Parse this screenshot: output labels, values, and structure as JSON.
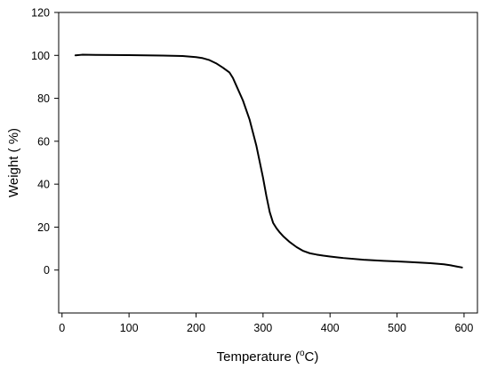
{
  "chart_data": {
    "type": "line",
    "title": "",
    "xlabel": "Temperature (°C)",
    "xlabel_parts": {
      "before": "Temperature (",
      "sup": "o",
      "after": "C)"
    },
    "ylabel": "Weight ( %)",
    "xlim": [
      -5,
      620
    ],
    "ylim": [
      -20,
      120
    ],
    "xticks": [
      0,
      100,
      200,
      300,
      400,
      500,
      600
    ],
    "yticks": [
      0,
      20,
      40,
      60,
      80,
      100,
      120
    ],
    "grid": false,
    "line_color": "#000000",
    "series": [
      {
        "x": [
          20,
          30,
          50,
          100,
          150,
          180,
          200,
          210,
          220,
          230,
          240,
          250,
          255,
          260,
          270,
          280,
          290,
          300,
          305,
          310,
          315,
          320,
          325,
          330,
          340,
          350,
          360,
          370,
          380,
          390,
          400,
          420,
          450,
          480,
          500,
          520,
          550,
          570,
          580,
          590,
          597
        ],
        "y": [
          100,
          100.3,
          100.2,
          100.1,
          99.9,
          99.7,
          99.2,
          98.7,
          97.8,
          96.3,
          94.3,
          92.0,
          89.5,
          86.0,
          79.0,
          70.0,
          58.0,
          43.0,
          34.5,
          27.0,
          22.0,
          19.5,
          17.5,
          15.8,
          13.0,
          10.7,
          8.9,
          7.8,
          7.2,
          6.7,
          6.3,
          5.6,
          4.8,
          4.3,
          4.0,
          3.7,
          3.2,
          2.7,
          2.2,
          1.6,
          1.2
        ]
      }
    ]
  }
}
